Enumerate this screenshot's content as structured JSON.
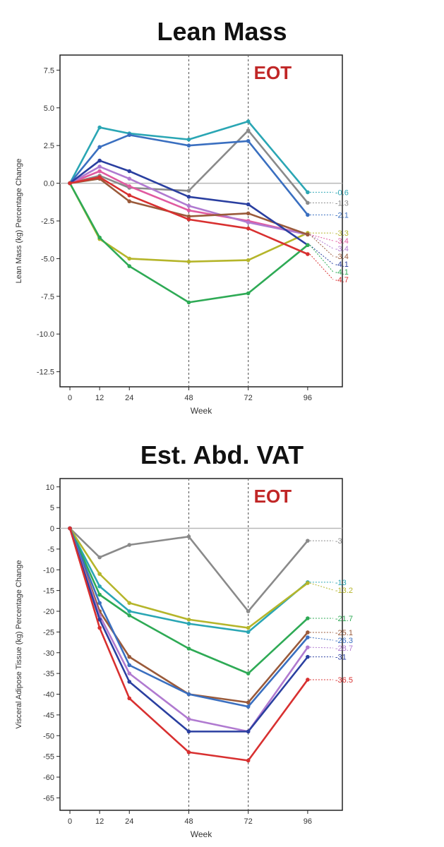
{
  "chart_data": [
    {
      "type": "line",
      "title": "Lean Mass",
      "xlabel": "Week",
      "ylabel": "Lean Mass (kg) Percentage Change",
      "annotation": "EOT",
      "x": [
        0,
        12,
        24,
        48,
        72,
        96
      ],
      "x_ticks": [
        "0",
        "12",
        "24",
        "48",
        "72",
        "96"
      ],
      "xlim": [
        -4,
        110
      ],
      "ylim": [
        -13.5,
        8.5
      ],
      "y_ticks": [
        7.5,
        5.0,
        2.5,
        0.0,
        -2.5,
        -5.0,
        -7.5,
        -10.0,
        -12.5
      ],
      "y_tick_labels": [
        "7.5",
        "5.0",
        "2.5",
        "0.0",
        "-2.5",
        "-5.0",
        "-7.5",
        "-10.0",
        "-12.5"
      ],
      "vlines": [
        48,
        72
      ],
      "series": [
        {
          "color": "#2aa6b4",
          "values": [
            0,
            3.7,
            3.3,
            2.9,
            4.1,
            -0.6
          ],
          "end_label": "-0.6"
        },
        {
          "color": "#8a8a8a",
          "values": [
            0,
            0.5,
            -0.3,
            -0.5,
            3.5,
            -1.3
          ],
          "end_label": "-1.3"
        },
        {
          "color": "#3a6fc0",
          "values": [
            0,
            2.4,
            3.2,
            2.5,
            2.8,
            -2.1
          ],
          "end_label": "-2.1"
        },
        {
          "color": "#b5b52a",
          "values": [
            0,
            -3.7,
            -5.0,
            -5.2,
            -5.1,
            -3.3
          ],
          "end_label": "-3.3"
        },
        {
          "color": "#e05aa0",
          "values": [
            0,
            0.8,
            -0.2,
            -1.8,
            -2.5,
            -3.4
          ],
          "end_label": "-3.4"
        },
        {
          "color": "#b07ad0",
          "values": [
            0,
            1.1,
            0.3,
            -1.5,
            -2.6,
            -3.4
          ],
          "end_label": "-3.4"
        },
        {
          "color": "#9a5a3a",
          "values": [
            0,
            0.3,
            -1.2,
            -2.2,
            -2.0,
            -3.4
          ],
          "end_label": "-3.4"
        },
        {
          "color": "#2a3fa0",
          "values": [
            0,
            1.5,
            0.8,
            -0.9,
            -1.4,
            -4.1
          ],
          "end_label": "-4.1"
        },
        {
          "color": "#2eaa55",
          "values": [
            0,
            -3.6,
            -5.5,
            -7.9,
            -7.3,
            -4.1
          ],
          "end_label": "-4.1"
        },
        {
          "color": "#d83030",
          "values": [
            0,
            0.4,
            -0.8,
            -2.4,
            -3.0,
            -4.7
          ],
          "end_label": "-4.7"
        }
      ]
    },
    {
      "type": "line",
      "title": "Est. Abd. VAT",
      "xlabel": "Week",
      "ylabel": "Visceral Adipose Tissue (kg) Percentage Change",
      "annotation": "EOT",
      "x": [
        0,
        12,
        24,
        48,
        72,
        96
      ],
      "x_ticks": [
        "0",
        "12",
        "24",
        "48",
        "72",
        "96"
      ],
      "xlim": [
        -4,
        110
      ],
      "ylim": [
        -68,
        12
      ],
      "y_ticks": [
        10,
        5,
        0,
        -5,
        -10,
        -15,
        -20,
        -25,
        -30,
        -35,
        -40,
        -45,
        -50,
        -55,
        -60,
        -65
      ],
      "y_tick_labels": [
        "10",
        "5",
        "0",
        "-5",
        "-10",
        "-15",
        "-20",
        "-25",
        "-30",
        "-35",
        "-40",
        "-45",
        "-50",
        "-55",
        "-60",
        "-65"
      ],
      "vlines": [
        48,
        72
      ],
      "series": [
        {
          "color": "#8a8a8a",
          "values": [
            0,
            -7,
            -4,
            -2,
            -20,
            -3
          ],
          "end_label": "-3"
        },
        {
          "color": "#2aa6b4",
          "values": [
            0,
            -14,
            -20,
            -23,
            -25,
            -13
          ],
          "end_label": "-13"
        },
        {
          "color": "#b5b52a",
          "values": [
            0,
            -11,
            -18,
            -22,
            -24,
            -13.2
          ],
          "end_label": "-13.2"
        },
        {
          "color": "#2eaa55",
          "values": [
            0,
            -16,
            -21,
            -29,
            -35,
            -21.7
          ],
          "end_label": "-21.7"
        },
        {
          "color": "#9a5a3a",
          "values": [
            0,
            -20,
            -31,
            -40,
            -42,
            -25.1
          ],
          "end_label": "-25.1"
        },
        {
          "color": "#3a6fc0",
          "values": [
            0,
            -18,
            -33,
            -40,
            -43,
            -26.3
          ],
          "end_label": "-26.3"
        },
        {
          "color": "#b07ad0",
          "values": [
            0,
            -21,
            -35,
            -46,
            -49,
            -28.7
          ],
          "end_label": "-28.7"
        },
        {
          "color": "#2a3fa0",
          "values": [
            0,
            -22,
            -37,
            -49,
            -49,
            -31
          ],
          "end_label": "-31"
        },
        {
          "color": "#d83030",
          "values": [
            0,
            -24,
            -41,
            -54,
            -56,
            -36.5
          ],
          "end_label": "-36.5"
        }
      ]
    }
  ]
}
